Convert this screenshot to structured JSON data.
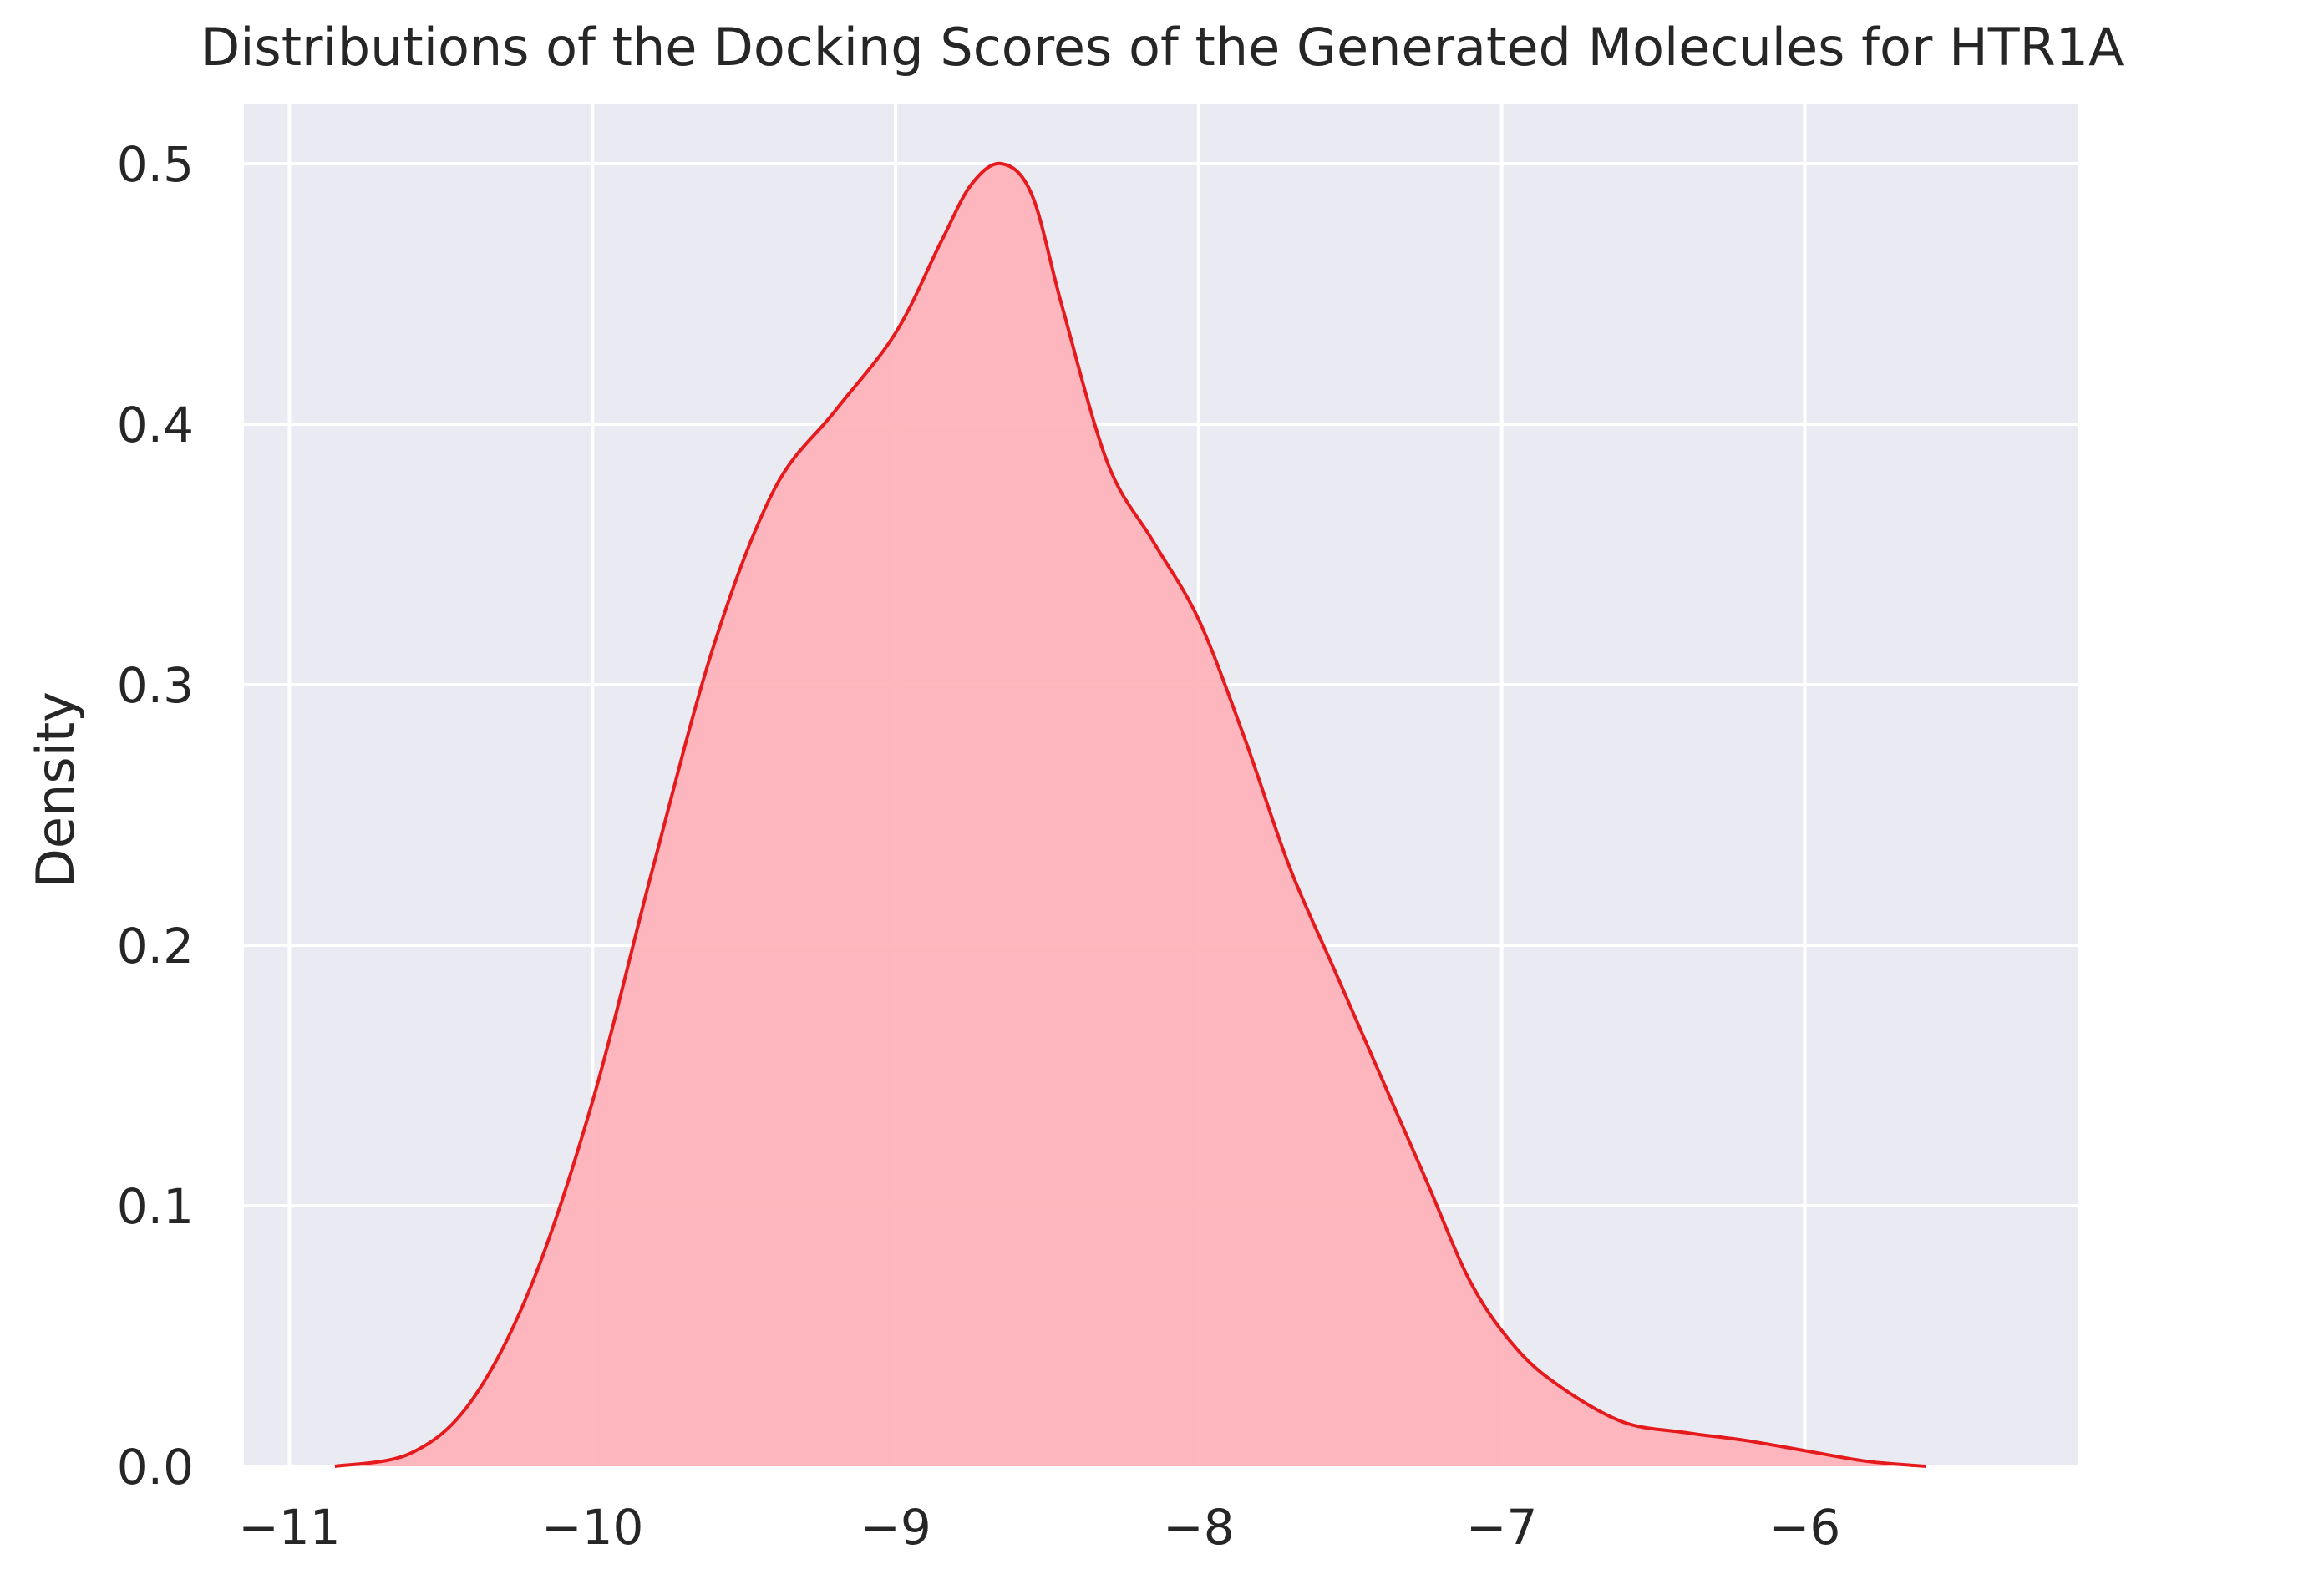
{
  "chart_data": {
    "type": "area",
    "title": "Distributions of the Docking Scores of the Generated Molecules for HTR1A",
    "xlabel": "",
    "ylabel": "Density",
    "xlim": [
      -11.15,
      -5.1
    ],
    "ylim": [
      0,
      0.5
    ],
    "x_ticks": [
      -11,
      -10,
      -9,
      -8,
      -7,
      -6
    ],
    "x_tick_labels": [
      "−11",
      "−10",
      "−9",
      "−8",
      "−7",
      "−6"
    ],
    "y_ticks": [
      0.0,
      0.1,
      0.2,
      0.3,
      0.4,
      0.5
    ],
    "y_tick_labels": [
      "0.0",
      "0.1",
      "0.2",
      "0.3",
      "0.4",
      "0.5"
    ],
    "grid": true,
    "colors": {
      "background": "#eaeaf2",
      "grid": "#ffffff",
      "line": "#e41a1c",
      "fill": "#ffb3ba"
    },
    "series": [
      {
        "x": [
          -10.85,
          -10.6,
          -10.4,
          -10.2,
          -10.0,
          -9.8,
          -9.6,
          -9.4,
          -9.2,
          -9.0,
          -8.85,
          -8.75,
          -8.65,
          -8.55,
          -8.45,
          -8.3,
          -8.15,
          -8.0,
          -7.85,
          -7.7,
          -7.55,
          -7.4,
          -7.25,
          -7.1,
          -6.95,
          -6.8,
          -6.6,
          -6.4,
          -6.2,
          -6.0,
          -5.8,
          -5.6
        ],
        "y": [
          0.0,
          0.005,
          0.025,
          0.07,
          0.14,
          0.23,
          0.315,
          0.375,
          0.405,
          0.435,
          0.47,
          0.492,
          0.5,
          0.488,
          0.445,
          0.385,
          0.355,
          0.325,
          0.28,
          0.23,
          0.19,
          0.15,
          0.11,
          0.07,
          0.045,
          0.03,
          0.017,
          0.013,
          0.01,
          0.006,
          0.002,
          0.0
        ]
      }
    ]
  }
}
